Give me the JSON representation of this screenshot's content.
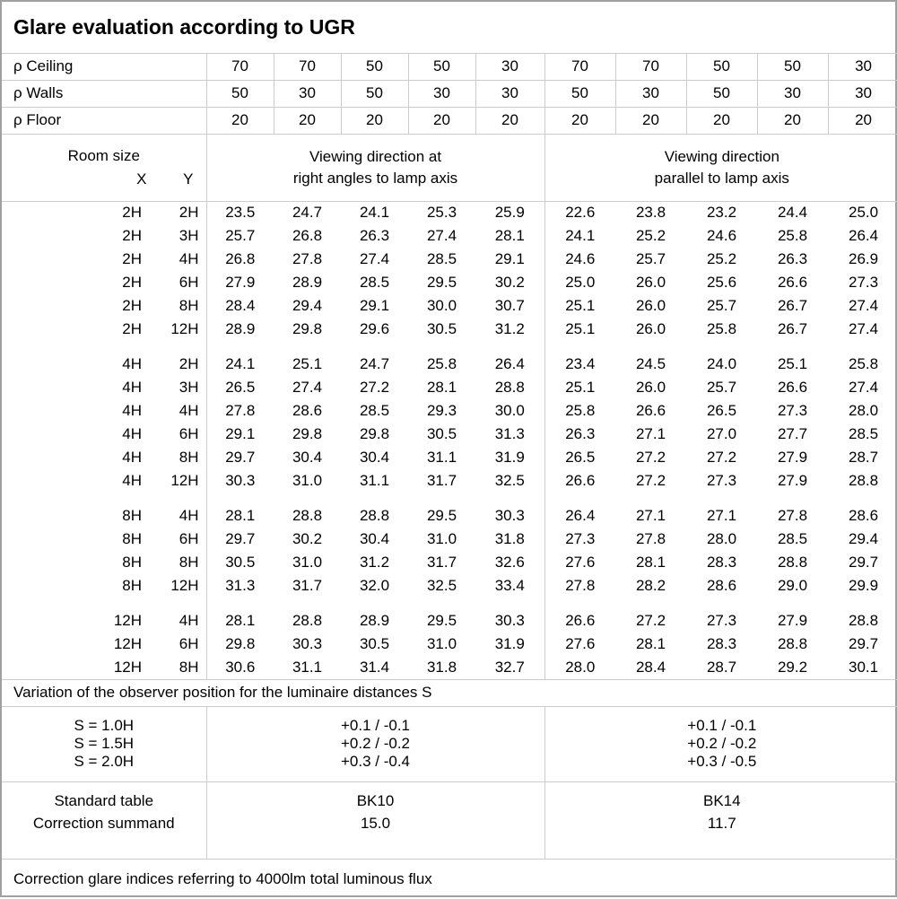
{
  "title": "Glare evaluation according to UGR",
  "colors": {
    "background": "#ffffff",
    "text": "#000000",
    "grid_line": "#cccccc"
  },
  "reflectance_rows": [
    {
      "label": "ρ Ceiling",
      "values": [
        "70",
        "70",
        "50",
        "50",
        "30",
        "70",
        "70",
        "50",
        "50",
        "30"
      ]
    },
    {
      "label": "ρ Walls",
      "values": [
        "50",
        "30",
        "50",
        "30",
        "30",
        "50",
        "30",
        "50",
        "30",
        "30"
      ]
    },
    {
      "label": "ρ Floor",
      "values": [
        "20",
        "20",
        "20",
        "20",
        "20",
        "20",
        "20",
        "20",
        "20",
        "20"
      ]
    }
  ],
  "room_size": {
    "label": "Room size",
    "x_label": "X",
    "y_label": "Y"
  },
  "groups": [
    {
      "header_line1": "Viewing direction at",
      "header_line2": "right angles to lamp axis"
    },
    {
      "header_line1": "Viewing direction",
      "header_line2": "parallel to lamp axis"
    }
  ],
  "ugr_blocks": [
    {
      "rows": [
        {
          "x": "2H",
          "y": "2H",
          "right_angles": [
            "23.5",
            "24.7",
            "24.1",
            "25.3",
            "25.9"
          ],
          "parallel": [
            "22.6",
            "23.8",
            "23.2",
            "24.4",
            "25.0"
          ]
        },
        {
          "x": "2H",
          "y": "3H",
          "right_angles": [
            "25.7",
            "26.8",
            "26.3",
            "27.4",
            "28.1"
          ],
          "parallel": [
            "24.1",
            "25.2",
            "24.6",
            "25.8",
            "26.4"
          ]
        },
        {
          "x": "2H",
          "y": "4H",
          "right_angles": [
            "26.8",
            "27.8",
            "27.4",
            "28.5",
            "29.1"
          ],
          "parallel": [
            "24.6",
            "25.7",
            "25.2",
            "26.3",
            "26.9"
          ]
        },
        {
          "x": "2H",
          "y": "6H",
          "right_angles": [
            "27.9",
            "28.9",
            "28.5",
            "29.5",
            "30.2"
          ],
          "parallel": [
            "25.0",
            "26.0",
            "25.6",
            "26.6",
            "27.3"
          ]
        },
        {
          "x": "2H",
          "y": "8H",
          "right_angles": [
            "28.4",
            "29.4",
            "29.1",
            "30.0",
            "30.7"
          ],
          "parallel": [
            "25.1",
            "26.0",
            "25.7",
            "26.7",
            "27.4"
          ]
        },
        {
          "x": "2H",
          "y": "12H",
          "right_angles": [
            "28.9",
            "29.8",
            "29.6",
            "30.5",
            "31.2"
          ],
          "parallel": [
            "25.1",
            "26.0",
            "25.8",
            "26.7",
            "27.4"
          ]
        }
      ]
    },
    {
      "rows": [
        {
          "x": "4H",
          "y": "2H",
          "right_angles": [
            "24.1",
            "25.1",
            "24.7",
            "25.8",
            "26.4"
          ],
          "parallel": [
            "23.4",
            "24.5",
            "24.0",
            "25.1",
            "25.8"
          ]
        },
        {
          "x": "4H",
          "y": "3H",
          "right_angles": [
            "26.5",
            "27.4",
            "27.2",
            "28.1",
            "28.8"
          ],
          "parallel": [
            "25.1",
            "26.0",
            "25.7",
            "26.6",
            "27.4"
          ]
        },
        {
          "x": "4H",
          "y": "4H",
          "right_angles": [
            "27.8",
            "28.6",
            "28.5",
            "29.3",
            "30.0"
          ],
          "parallel": [
            "25.8",
            "26.6",
            "26.5",
            "27.3",
            "28.0"
          ]
        },
        {
          "x": "4H",
          "y": "6H",
          "right_angles": [
            "29.1",
            "29.8",
            "29.8",
            "30.5",
            "31.3"
          ],
          "parallel": [
            "26.3",
            "27.1",
            "27.0",
            "27.7",
            "28.5"
          ]
        },
        {
          "x": "4H",
          "y": "8H",
          "right_angles": [
            "29.7",
            "30.4",
            "30.4",
            "31.1",
            "31.9"
          ],
          "parallel": [
            "26.5",
            "27.2",
            "27.2",
            "27.9",
            "28.7"
          ]
        },
        {
          "x": "4H",
          "y": "12H",
          "right_angles": [
            "30.3",
            "31.0",
            "31.1",
            "31.7",
            "32.5"
          ],
          "parallel": [
            "26.6",
            "27.2",
            "27.3",
            "27.9",
            "28.8"
          ]
        }
      ]
    },
    {
      "rows": [
        {
          "x": "8H",
          "y": "4H",
          "right_angles": [
            "28.1",
            "28.8",
            "28.8",
            "29.5",
            "30.3"
          ],
          "parallel": [
            "26.4",
            "27.1",
            "27.1",
            "27.8",
            "28.6"
          ]
        },
        {
          "x": "8H",
          "y": "6H",
          "right_angles": [
            "29.7",
            "30.2",
            "30.4",
            "31.0",
            "31.8"
          ],
          "parallel": [
            "27.3",
            "27.8",
            "28.0",
            "28.5",
            "29.4"
          ]
        },
        {
          "x": "8H",
          "y": "8H",
          "right_angles": [
            "30.5",
            "31.0",
            "31.2",
            "31.7",
            "32.6"
          ],
          "parallel": [
            "27.6",
            "28.1",
            "28.3",
            "28.8",
            "29.7"
          ]
        },
        {
          "x": "8H",
          "y": "12H",
          "right_angles": [
            "31.3",
            "31.7",
            "32.0",
            "32.5",
            "33.4"
          ],
          "parallel": [
            "27.8",
            "28.2",
            "28.6",
            "29.0",
            "29.9"
          ]
        }
      ]
    },
    {
      "rows": [
        {
          "x": "12H",
          "y": "4H",
          "right_angles": [
            "28.1",
            "28.8",
            "28.9",
            "29.5",
            "30.3"
          ],
          "parallel": [
            "26.6",
            "27.2",
            "27.3",
            "27.9",
            "28.8"
          ]
        },
        {
          "x": "12H",
          "y": "6H",
          "right_angles": [
            "29.8",
            "30.3",
            "30.5",
            "31.0",
            "31.9"
          ],
          "parallel": [
            "27.6",
            "28.1",
            "28.3",
            "28.8",
            "29.7"
          ]
        },
        {
          "x": "12H",
          "y": "8H",
          "right_angles": [
            "30.6",
            "31.1",
            "31.4",
            "31.8",
            "32.7"
          ],
          "parallel": [
            "28.0",
            "28.4",
            "28.7",
            "29.2",
            "30.1"
          ]
        }
      ]
    }
  ],
  "variation_note": "Variation of the observer position for the luminaire distances S",
  "variation_rows": [
    {
      "label": "S = 1.0H",
      "right_angles": "+0.1 / -0.1",
      "parallel": "+0.1 / -0.1"
    },
    {
      "label": "S = 1.5H",
      "right_angles": "+0.2 / -0.2",
      "parallel": "+0.2 / -0.2"
    },
    {
      "label": "S = 2.0H",
      "right_angles": "+0.3 / -0.4",
      "parallel": "+0.3 / -0.5"
    }
  ],
  "standard": {
    "rows": [
      {
        "label": "Standard table",
        "right_angles": "BK10",
        "parallel": "BK14"
      },
      {
        "label": "Correction summand",
        "right_angles": "15.0",
        "parallel": "11.7"
      }
    ]
  },
  "footer_note": "Correction glare indices referring to 4000lm total luminous flux"
}
